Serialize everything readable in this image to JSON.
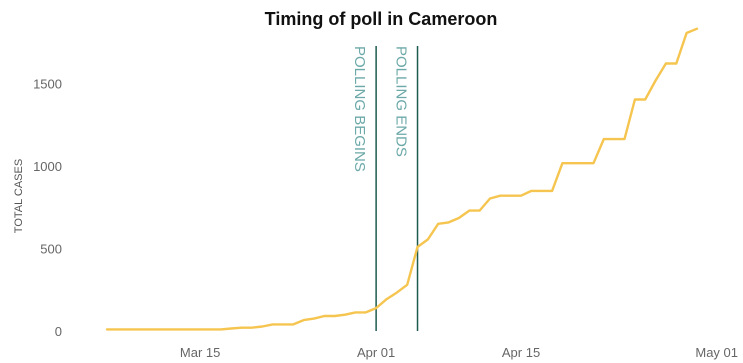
{
  "chart_data": {
    "type": "line",
    "title": "Timing of poll in Cameroon",
    "xlabel": "",
    "ylabel": "TOTAL CASES",
    "x_ticks": [
      {
        "date": "2020-03-15",
        "label": "Mar 15"
      },
      {
        "date": "2020-04-01",
        "label": "Apr 01"
      },
      {
        "date": "2020-04-15",
        "label": "Apr 15"
      },
      {
        "date": "2020-05-01",
        "label": "May 01"
      }
    ],
    "y_ticks": [
      0,
      500,
      1000,
      1500
    ],
    "xlim": [
      "2020-03-06",
      "2020-05-02"
    ],
    "ylim": [
      0,
      1800
    ],
    "grid": false,
    "series_color": "#f5c550",
    "annotation_color": "#1d5a4f",
    "annotations": [
      {
        "date": "2020-04-01",
        "label": "POLLING BEGINS"
      },
      {
        "date": "2020-04-05",
        "label": "POLLING ENDS"
      }
    ],
    "series": [
      {
        "name": "",
        "x": [
          "2020-03-06",
          "2020-03-07",
          "2020-03-08",
          "2020-03-09",
          "2020-03-10",
          "2020-03-11",
          "2020-03-12",
          "2020-03-13",
          "2020-03-14",
          "2020-03-15",
          "2020-03-16",
          "2020-03-17",
          "2020-03-18",
          "2020-03-19",
          "2020-03-20",
          "2020-03-21",
          "2020-03-22",
          "2020-03-23",
          "2020-03-24",
          "2020-03-25",
          "2020-03-26",
          "2020-03-27",
          "2020-03-28",
          "2020-03-29",
          "2020-03-30",
          "2020-03-31",
          "2020-04-01",
          "2020-04-02",
          "2020-04-03",
          "2020-04-04",
          "2020-04-05",
          "2020-04-06",
          "2020-04-07",
          "2020-04-08",
          "2020-04-09",
          "2020-04-10",
          "2020-04-11",
          "2020-04-12",
          "2020-04-13",
          "2020-04-14",
          "2020-04-15",
          "2020-04-16",
          "2020-04-17",
          "2020-04-18",
          "2020-04-19",
          "2020-04-20",
          "2020-04-21",
          "2020-04-22",
          "2020-04-23",
          "2020-04-24",
          "2020-04-25",
          "2020-04-26",
          "2020-04-27",
          "2020-04-28",
          "2020-04-29",
          "2020-04-30",
          "2020-05-01",
          "2020-05-02"
        ],
        "values": [
          10,
          10,
          10,
          10,
          10,
          10,
          10,
          10,
          10,
          10,
          10,
          10,
          15,
          20,
          20,
          27,
          40,
          40,
          40,
          66,
          75,
          91,
          91,
          99,
          113,
          113,
          139,
          193,
          233,
          280,
          509,
          555,
          650,
          658,
          685,
          730,
          730,
          803,
          820,
          820,
          820,
          849,
          849,
          849,
          1017,
          1017,
          1017,
          1017,
          1163,
          1163,
          1163,
          1403,
          1403,
          1518,
          1621,
          1621,
          1806,
          1832
        ]
      }
    ]
  }
}
